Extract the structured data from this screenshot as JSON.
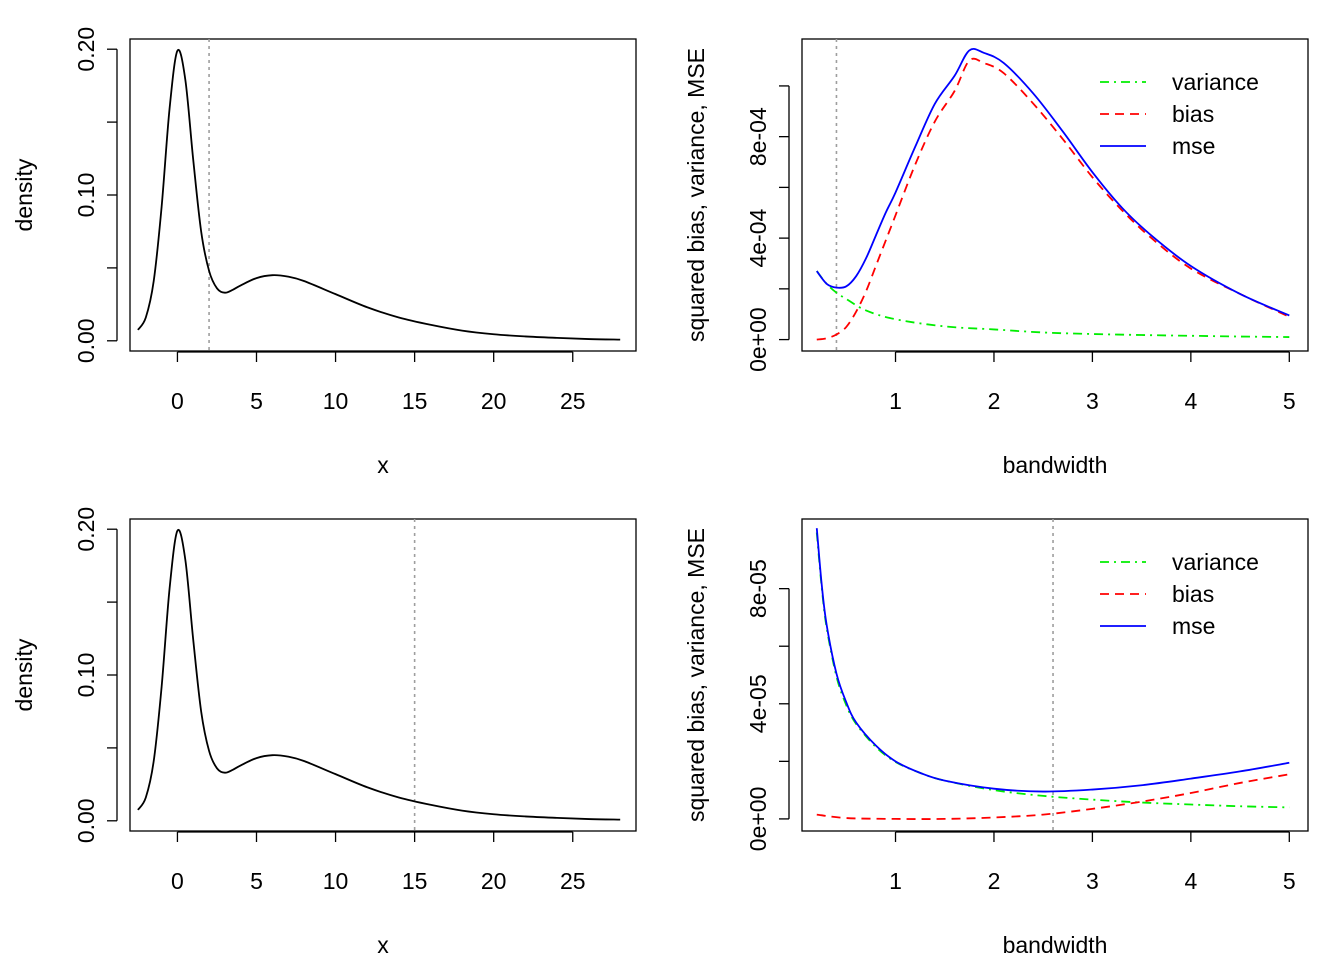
{
  "chart_data": [
    {
      "type": "line",
      "panel": "top-left",
      "xlabel": "x",
      "ylabel": "density",
      "xlim": [
        -3,
        29
      ],
      "ylim": [
        -0.007,
        0.207
      ],
      "xticks": [
        0,
        5,
        10,
        15,
        20,
        25
      ],
      "xtick_labels": [
        "0",
        "5",
        "10",
        "15",
        "20",
        "25"
      ],
      "yticks": [
        0,
        0.05,
        0.1,
        0.15,
        0.2
      ],
      "ytick_labels": [
        "0.00",
        "",
        "0.10",
        "",
        "0.20"
      ],
      "reference_line": 2,
      "series": [
        {
          "color": "#000000",
          "x": [
            -2.5,
            -2,
            -1.5,
            -1,
            -0.5,
            0,
            0.5,
            1,
            1.5,
            2,
            2.5,
            3,
            3.5,
            4,
            5,
            6,
            7,
            8,
            10,
            12,
            14,
            16,
            18,
            20,
            22,
            24,
            26,
            28
          ],
          "y": [
            0.0075,
            0.016,
            0.041,
            0.092,
            0.159,
            0.199,
            0.179,
            0.124,
            0.075,
            0.048,
            0.036,
            0.033,
            0.035,
            0.038,
            0.043,
            0.045,
            0.044,
            0.041,
            0.032,
            0.023,
            0.016,
            0.011,
            0.007,
            0.0045,
            0.003,
            0.002,
            0.0012,
            0.0008
          ]
        }
      ]
    },
    {
      "type": "line",
      "panel": "top-right",
      "xlabel": "bandwidth",
      "ylabel": "squared bias, variance, MSE",
      "xlim": [
        0.05,
        5.19
      ],
      "ylim": [
        -4.5e-05,
        0.001185
      ],
      "xticks": [
        1,
        2,
        3,
        4,
        5
      ],
      "xtick_labels": [
        "1",
        "2",
        "3",
        "4",
        "5"
      ],
      "yticks": [
        0,
        0.0002,
        0.0004,
        0.0006,
        0.0008,
        0.001
      ],
      "ytick_labels": [
        "0e+00",
        "",
        "4e-04",
        "",
        "8e-04",
        ""
      ],
      "reference_line": 0.4,
      "legend_position": "top-right",
      "series": [
        {
          "name": "variance",
          "color": "#00ee00",
          "dash": "dashdot",
          "x": [
            0.2,
            0.3,
            0.4,
            0.5,
            0.7,
            1,
            1.5,
            2,
            2.5,
            3,
            3.5,
            4,
            4.5,
            5
          ],
          "y": [
            0.00027,
            0.00022,
            0.000185,
            0.00016,
            0.000115,
            8e-05,
            5.2e-05,
            4e-05,
            2.8e-05,
            2.2e-05,
            1.8e-05,
            1.5e-05,
            1.2e-05,
            1e-05
          ]
        },
        {
          "name": "bias",
          "color": "#ff0000",
          "dash": "dashed",
          "x": [
            0.2,
            0.3,
            0.4,
            0.5,
            0.6,
            0.7,
            0.8,
            0.9,
            1,
            1.2,
            1.4,
            1.6,
            1.75,
            1.9,
            2.1,
            2.4,
            2.7,
            3,
            3.3,
            3.6,
            4,
            4.5,
            5
          ],
          "y": [
            0,
            5e-06,
            2e-05,
            5e-05,
            0.00011,
            0.00019,
            0.00029,
            0.00039,
            0.00049,
            0.00069,
            0.00086,
            0.00098,
            0.0011,
            0.00109,
            0.00105,
            0.00093,
            0.00079,
            0.00064,
            0.00051,
            0.0004,
            0.00028,
            0.00018,
            9e-05
          ]
        },
        {
          "name": "mse",
          "color": "#0000ff",
          "dash": "solid",
          "x": [
            0.2,
            0.3,
            0.4,
            0.5,
            0.6,
            0.7,
            0.8,
            0.9,
            1,
            1.2,
            1.4,
            1.6,
            1.75,
            1.9,
            2.1,
            2.4,
            2.7,
            3,
            3.3,
            3.6,
            4,
            4.5,
            5
          ],
          "y": [
            0.00027,
            0.00022,
            0.000205,
            0.00021,
            0.00025,
            0.00032,
            0.00041,
            0.0005,
            0.00058,
            0.00076,
            0.00093,
            0.00104,
            0.00114,
            0.00113,
            0.00109,
            0.00097,
            0.00082,
            0.00066,
            0.00052,
            0.00041,
            0.00029,
            0.00018,
            9.5e-05
          ]
        }
      ]
    },
    {
      "type": "line",
      "panel": "bottom-left",
      "xlabel": "x",
      "ylabel": "density",
      "xlim": [
        -3,
        29
      ],
      "ylim": [
        -0.007,
        0.207
      ],
      "xticks": [
        0,
        5,
        10,
        15,
        20,
        25
      ],
      "xtick_labels": [
        "0",
        "5",
        "10",
        "15",
        "20",
        "25"
      ],
      "yticks": [
        0,
        0.05,
        0.1,
        0.15,
        0.2
      ],
      "ytick_labels": [
        "0.00",
        "",
        "0.10",
        "",
        "0.20"
      ],
      "reference_line": 15,
      "series": [
        {
          "color": "#000000",
          "x": [
            -2.5,
            -2,
            -1.5,
            -1,
            -0.5,
            0,
            0.5,
            1,
            1.5,
            2,
            2.5,
            3,
            3.5,
            4,
            5,
            6,
            7,
            8,
            10,
            12,
            14,
            16,
            18,
            20,
            22,
            24,
            26,
            28
          ],
          "y": [
            0.0075,
            0.016,
            0.041,
            0.092,
            0.159,
            0.199,
            0.179,
            0.124,
            0.075,
            0.048,
            0.036,
            0.033,
            0.035,
            0.038,
            0.043,
            0.045,
            0.044,
            0.041,
            0.032,
            0.023,
            0.016,
            0.011,
            0.007,
            0.0045,
            0.003,
            0.002,
            0.0012,
            0.0008
          ]
        }
      ]
    },
    {
      "type": "line",
      "panel": "bottom-right",
      "xlabel": "bandwidth",
      "ylabel": "squared bias, variance, MSE",
      "xlim": [
        0.05,
        5.19
      ],
      "ylim": [
        -4.2e-06,
        0.0001042
      ],
      "xticks": [
        1,
        2,
        3,
        4,
        5
      ],
      "xtick_labels": [
        "1",
        "2",
        "3",
        "4",
        "5"
      ],
      "yticks": [
        0,
        2e-05,
        4e-05,
        6e-05,
        8e-05
      ],
      "ytick_labels": [
        "0e+00",
        "",
        "4e-05",
        "",
        "8e-05"
      ],
      "reference_line": 2.6,
      "legend_position": "top-right",
      "series": [
        {
          "name": "variance",
          "color": "#00ee00",
          "dash": "dashdot",
          "x": [
            0.2,
            0.25,
            0.3,
            0.4,
            0.5,
            0.6,
            0.8,
            1,
            1.25,
            1.5,
            2,
            2.5,
            3,
            3.5,
            4,
            4.5,
            5
          ],
          "y": [
            9.95e-05,
            8.05e-05,
            6.65e-05,
            4.95e-05,
            3.95e-05,
            3.3e-05,
            2.5e-05,
            1.98e-05,
            1.6e-05,
            1.33e-05,
            1e-05,
            8e-06,
            6.7e-06,
            5.7e-06,
            5e-06,
            4.4e-06,
            4e-06
          ]
        },
        {
          "name": "bias",
          "color": "#ff0000",
          "dash": "dashed",
          "x": [
            0.2,
            0.5,
            1,
            1.5,
            2,
            2.5,
            3,
            3.5,
            4,
            4.5,
            5
          ],
          "y": [
            1.5e-06,
            3e-07,
            0,
            0,
            5e-07,
            1.5e-06,
            3.5e-06,
            6e-06,
            9e-06,
            1.25e-05,
            1.55e-05
          ]
        },
        {
          "name": "mse",
          "color": "#0000ff",
          "dash": "solid",
          "x": [
            0.2,
            0.25,
            0.3,
            0.4,
            0.5,
            0.6,
            0.8,
            1,
            1.25,
            1.5,
            2,
            2.5,
            3,
            3.5,
            4,
            4.5,
            5
          ],
          "y": [
            0.000101,
            8.15e-05,
            6.75e-05,
            5.05e-05,
            4.05e-05,
            3.35e-05,
            2.55e-05,
            2e-05,
            1.6e-05,
            1.33e-05,
            1.05e-05,
            9.5e-06,
            1.02e-05,
            1.17e-05,
            1.4e-05,
            1.65e-05,
            1.95e-05
          ]
        }
      ]
    }
  ]
}
